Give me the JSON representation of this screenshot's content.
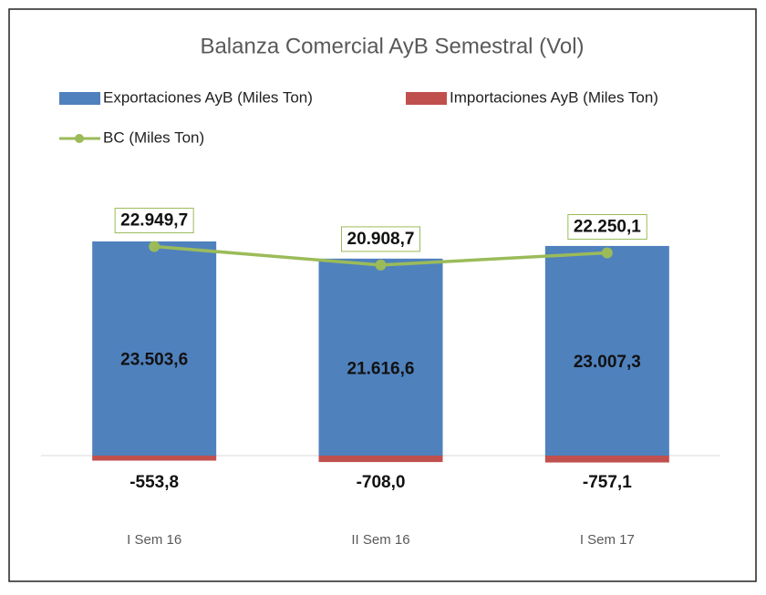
{
  "chart_data": {
    "type": "bar-line",
    "title": "Balanza Comercial AyB Semestral (Vol)",
    "categories": [
      "I Sem 16",
      "II Sem 16",
      "I Sem 17"
    ],
    "series": [
      {
        "name": "Exportaciones AyB (Miles Ton)",
        "type": "bar",
        "color": "#4f81bd",
        "values": [
          23503.6,
          21616.6,
          23007.3
        ],
        "value_labels": [
          "23.503,6",
          "21.616,6",
          "23.007,3"
        ]
      },
      {
        "name": "Importaciones AyB (Miles Ton)",
        "type": "bar",
        "color": "#c0504d",
        "values": [
          -553.8,
          -708.0,
          -757.1
        ],
        "value_labels": [
          "-553,8",
          "-708,0",
          "-757,1"
        ]
      },
      {
        "name": "BC (Miles Ton)",
        "type": "line",
        "color": "#9bbb59",
        "values": [
          22949.7,
          20908.7,
          22250.1
        ],
        "value_labels": [
          "22.949,7",
          "20.908,7",
          "22.250,1"
        ]
      }
    ],
    "ylim": [
      -5000,
      30000
    ]
  }
}
